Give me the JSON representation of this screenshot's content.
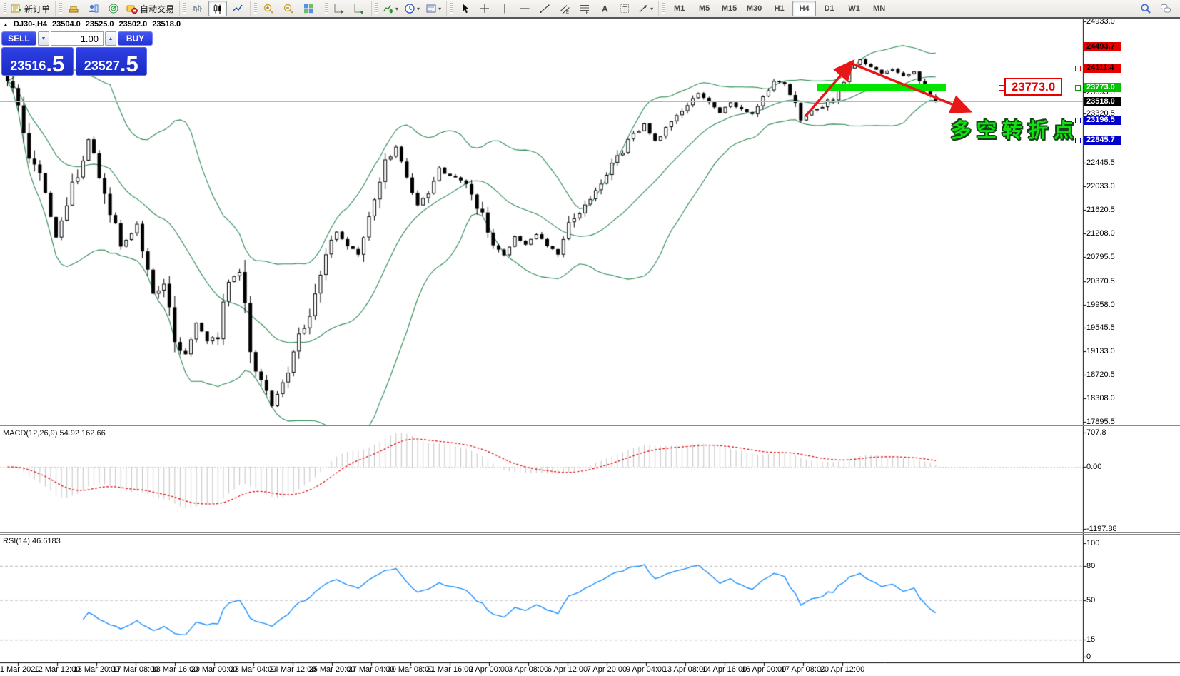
{
  "accent_colors": {
    "resistance_red": "#e60000",
    "support_blue": "#0000c8",
    "level_green": "#00c400",
    "highlight_lime": "#00e400",
    "annotation_green": "#0ce40c",
    "arrow_red": "#e81717",
    "panel_blue": "#2133d8",
    "candle_up": "#ffffff",
    "candle_down": "#000000",
    "bollinger_green": "#2e8b57",
    "macd_hist_silver": "#c4c4c4",
    "macd_signal_red": "#e00000",
    "rsi_blue": "#1e90ff",
    "current_price_gray": "#b8b8b8"
  },
  "toolbar": {
    "groups": [
      {
        "items": [
          {
            "name": "new-order-button",
            "icon": "neworder",
            "label": "新订单"
          }
        ]
      },
      {
        "items": [
          {
            "name": "gold-account-button",
            "icon": "gold"
          },
          {
            "name": "data-window-button",
            "icon": "person"
          },
          {
            "name": "market-watch-button",
            "icon": "radar"
          },
          {
            "name": "autotrading-button",
            "icon": "autotrading",
            "label": "自动交易"
          }
        ]
      },
      {
        "items": [
          {
            "name": "bar-chart-button",
            "icon": "bars"
          },
          {
            "name": "candlestick-chart-button",
            "icon": "candles",
            "active": true
          },
          {
            "name": "line-chart-button",
            "icon": "linechart"
          }
        ]
      },
      {
        "items": [
          {
            "name": "zoom-in-button",
            "icon": "zoomin"
          },
          {
            "name": "zoom-out-button",
            "icon": "zoomout"
          },
          {
            "name": "tile-windows-button",
            "icon": "tiles"
          }
        ]
      },
      {
        "items": [
          {
            "name": "auto-scroll-button",
            "icon": "ascroll"
          },
          {
            "name": "chart-shift-button",
            "icon": "cshift"
          }
        ]
      },
      {
        "items": [
          {
            "name": "indicators-button",
            "icon": "iplus",
            "dropdown": true
          },
          {
            "name": "periods-button",
            "icon": "clock",
            "dropdown": true
          },
          {
            "name": "templates-button",
            "icon": "template",
            "dropdown": true
          }
        ]
      },
      {
        "items": [
          {
            "name": "cursor-button",
            "icon": "cursor"
          },
          {
            "name": "crosshair-button",
            "icon": "crosshair"
          },
          {
            "name": "vertical-line-button",
            "icon": "vline"
          },
          {
            "name": "horizontal-line-button",
            "icon": "hline"
          },
          {
            "name": "trendline-button",
            "icon": "trend"
          },
          {
            "name": "channel-button",
            "icon": "channel"
          },
          {
            "name": "fibonacci-button",
            "icon": "fibo"
          },
          {
            "name": "text-button",
            "icon": "textA"
          },
          {
            "name": "text-label-button",
            "icon": "labelT"
          },
          {
            "name": "shapes-button",
            "icon": "shapes",
            "dropdown": true
          }
        ]
      },
      {
        "items": [
          {
            "name": "tf-m1-button",
            "tf": "M1"
          },
          {
            "name": "tf-m5-button",
            "tf": "M5"
          },
          {
            "name": "tf-m15-button",
            "tf": "M15"
          },
          {
            "name": "tf-m30-button",
            "tf": "M30"
          },
          {
            "name": "tf-h1-button",
            "tf": "H1"
          },
          {
            "name": "tf-h4-button",
            "tf": "H4",
            "active": true
          },
          {
            "name": "tf-d1-button",
            "tf": "D1"
          },
          {
            "name": "tf-w1-button",
            "tf": "W1"
          },
          {
            "name": "tf-mn-button",
            "tf": "MN"
          }
        ]
      }
    ],
    "right_items": [
      {
        "name": "search-button",
        "icon": "magnifier"
      },
      {
        "name": "chat-button",
        "icon": "chat"
      }
    ]
  },
  "chart": {
    "header": {
      "collapse_icon": "▲",
      "symbol_period": "DJ30-,H4",
      "open": "23504.0",
      "high": "23525.0",
      "low": "23502.0",
      "close": "23518.0"
    },
    "one_click": {
      "sell_label": "SELL",
      "buy_label": "BUY",
      "volume": "1.00",
      "sell_price_int": "23516",
      "sell_price_frac": ".5",
      "buy_price_int": "23527",
      "buy_price_frac": ".5"
    }
  },
  "chart_data": {
    "type": "candlestick",
    "symbol": "DJ30-",
    "timeframe": "H4",
    "last_ohlc": {
      "open": 23504.0,
      "high": 23525.0,
      "low": 23502.0,
      "close": 23518.0
    },
    "n_bars": 173,
    "first_open": 24230,
    "close_path": [
      [
        0,
        23950
      ],
      [
        2,
        23350
      ],
      [
        4,
        22450
      ],
      [
        6,
        22150
      ],
      [
        9,
        21150
      ],
      [
        11,
        21750
      ],
      [
        13,
        22250
      ],
      [
        15,
        22850
      ],
      [
        17,
        22300
      ],
      [
        19,
        21650
      ],
      [
        21,
        20950
      ],
      [
        24,
        21350
      ],
      [
        27,
        20150
      ],
      [
        29,
        20420
      ],
      [
        31,
        19350
      ],
      [
        33,
        19050
      ],
      [
        35,
        19650
      ],
      [
        37,
        19320
      ],
      [
        39,
        19400
      ],
      [
        41,
        20400
      ],
      [
        43,
        20520
      ],
      [
        45,
        19260
      ],
      [
        47,
        18620
      ],
      [
        49,
        18180
      ],
      [
        51,
        18560
      ],
      [
        53,
        19150
      ],
      [
        55,
        19560
      ],
      [
        57,
        20120
      ],
      [
        59,
        20800
      ],
      [
        61,
        21250
      ],
      [
        63,
        20980
      ],
      [
        65,
        20870
      ],
      [
        68,
        21820
      ],
      [
        70,
        22480
      ],
      [
        72,
        22700
      ],
      [
        74,
        22260
      ],
      [
        76,
        21700
      ],
      [
        78,
        21960
      ],
      [
        80,
        22340
      ],
      [
        82,
        22190
      ],
      [
        84,
        22140
      ],
      [
        86,
        21890
      ],
      [
        88,
        21480
      ],
      [
        90,
        21050
      ],
      [
        92,
        20830
      ],
      [
        94,
        21130
      ],
      [
        96,
        21020
      ],
      [
        98,
        21190
      ],
      [
        100,
        20980
      ],
      [
        102,
        20870
      ],
      [
        104,
        21350
      ],
      [
        106,
        21590
      ],
      [
        108,
        21830
      ],
      [
        110,
        22030
      ],
      [
        112,
        22380
      ],
      [
        114,
        22680
      ],
      [
        116,
        22930
      ],
      [
        118,
        23130
      ],
      [
        120,
        22830
      ],
      [
        122,
        23030
      ],
      [
        124,
        23230
      ],
      [
        126,
        23480
      ],
      [
        128,
        23680
      ],
      [
        130,
        23530
      ],
      [
        132,
        23330
      ],
      [
        134,
        23520
      ],
      [
        136,
        23370
      ],
      [
        138,
        23290
      ],
      [
        140,
        23550
      ],
      [
        142,
        23870
      ],
      [
        144,
        23850
      ],
      [
        146,
        23520
      ],
      [
        147,
        23230
      ],
      [
        149,
        23360
      ],
      [
        151,
        23440
      ],
      [
        153,
        23590
      ],
      [
        155,
        23940
      ],
      [
        157,
        24190
      ],
      [
        158,
        24280
      ],
      [
        160,
        24130
      ],
      [
        162,
        24020
      ],
      [
        164,
        24110
      ],
      [
        166,
        23960
      ],
      [
        168,
        24060
      ],
      [
        170,
        23790
      ],
      [
        171,
        23620
      ],
      [
        172,
        23518
      ]
    ],
    "indicator_settings": {
      "bollinger_period": 20,
      "bollinger_deviation": 2,
      "macd": "12,26,9",
      "rsi_period": 14
    },
    "price_axis": {
      "ticks": [
        {
          "t": "24933.0",
          "v": 24933.0
        },
        {
          "t": "23695.5",
          "v": 23695.5
        },
        {
          "t": "23320.5",
          "v": 23320.5
        },
        {
          "t": "22445.5",
          "v": 22445.5
        },
        {
          "t": "22033.0",
          "v": 22033.0
        },
        {
          "t": "21620.5",
          "v": 21620.5
        },
        {
          "t": "21208.0",
          "v": 21208.0
        },
        {
          "t": "20795.5",
          "v": 20795.5
        },
        {
          "t": "20370.5",
          "v": 20370.5
        },
        {
          "t": "19958.0",
          "v": 19958.0
        },
        {
          "t": "19545.5",
          "v": 19545.5
        },
        {
          "t": "19133.0",
          "v": 19133.0
        },
        {
          "t": "18720.5",
          "v": 18720.5
        },
        {
          "t": "18308.0",
          "v": 18308.0
        },
        {
          "t": "17895.5",
          "v": 17895.5
        }
      ],
      "boxes": [
        {
          "t": "24493.7",
          "v": 24493.7,
          "bg": "#e60000",
          "fg": "#000000"
        },
        {
          "t": "24111.4",
          "v": 24111.4,
          "bg": "#e60000",
          "fg": "#000000"
        },
        {
          "t": "23773.0",
          "v": 23773.0,
          "bg": "#00c400",
          "fg": "#ffffff"
        },
        {
          "t": "23518.0",
          "v": 23518.0,
          "bg": "#000000",
          "fg": "#ffffff"
        },
        {
          "t": "23196.5",
          "v": 23196.5,
          "bg": "#0000c8",
          "fg": "#ffffff"
        },
        {
          "t": "22845.7",
          "v": 22845.7,
          "bg": "#0000c8",
          "fg": "#ffffff"
        }
      ]
    },
    "hlines": [
      {
        "v": 24493.7,
        "color": "#e60000",
        "w": 1,
        "name": "resistance-line-1"
      },
      {
        "v": 24111.4,
        "color": "#e60000",
        "w": 1,
        "name": "resistance-line-2"
      },
      {
        "v": 23773.0,
        "color": "#00c400",
        "w": 1,
        "name": "key-level-line"
      },
      {
        "v": 23196.5,
        "color": "#0000c8",
        "w": 2,
        "name": "support-line-1"
      },
      {
        "v": 22845.7,
        "color": "#0000c8",
        "w": 2,
        "name": "support-line-2"
      }
    ],
    "current_price": 23518.0,
    "highlight_bar": {
      "value": 23773.0,
      "label": "key-zone"
    },
    "time_labels": [
      "11 Mar 2020",
      "12 Mar 12:00",
      "13 Mar 20:00",
      "17 Mar 08:00",
      "18 Mar 16:00",
      "20 Mar 00:00",
      "23 Mar 04:00",
      "24 Mar 12:00",
      "25 Mar 20:00",
      "27 Mar 04:00",
      "30 Mar 08:00",
      "31 Mar 16:00",
      "2 Apr 00:00",
      "3 Apr 08:00",
      "6 Apr 12:00",
      "7 Apr 20:00",
      "9 Apr 04:00",
      "13 Apr 08:00",
      "14 Apr 16:00",
      "16 Apr 00:00",
      "17 Apr 08:00",
      "20 Apr 12:00"
    ],
    "macd": {
      "label": "MACD(12,26,9)",
      "values": "54.92 162.66",
      "ticks": [
        "707.8",
        "0.00",
        "-1197.88"
      ]
    },
    "rsi": {
      "label": "RSI(14)",
      "value": "46.6183",
      "ticks": [
        "100",
        "80",
        "50",
        "15",
        "0"
      ],
      "levels": [
        80,
        50,
        15
      ]
    },
    "annotations": {
      "turning_point_text": "多空转折点",
      "price_callout": "23773.0"
    }
  }
}
